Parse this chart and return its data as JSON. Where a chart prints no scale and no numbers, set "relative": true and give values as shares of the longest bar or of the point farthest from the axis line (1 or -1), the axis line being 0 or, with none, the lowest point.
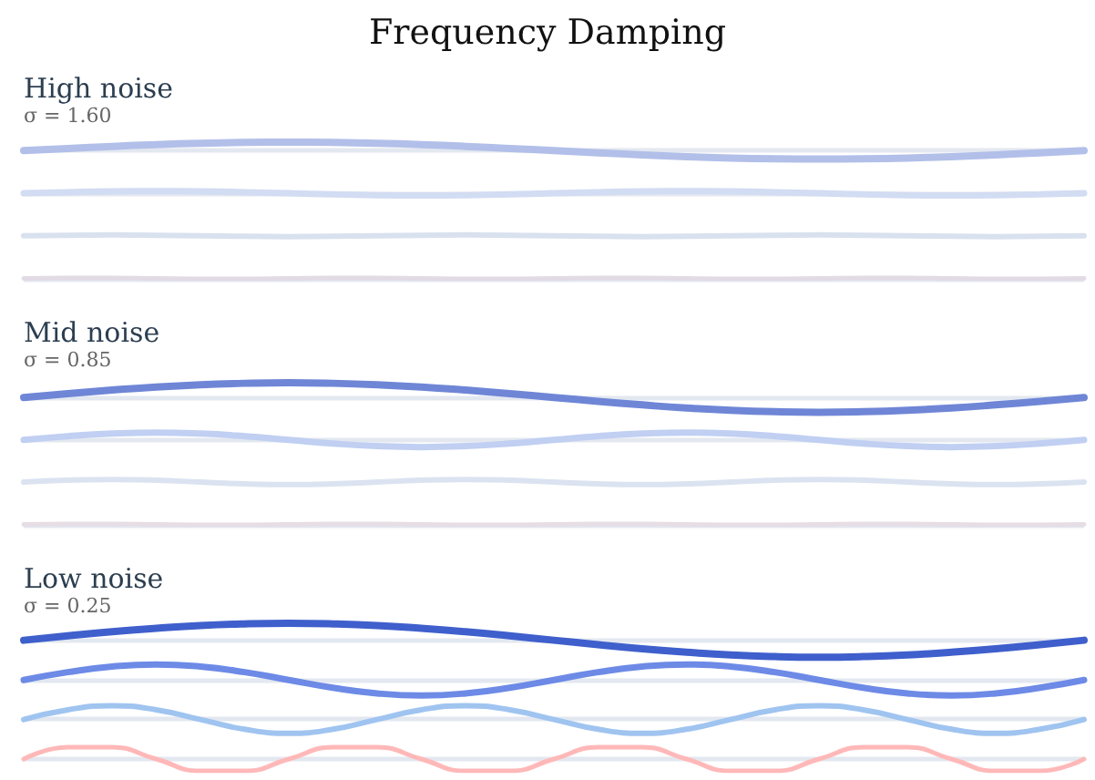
{
  "chart_data": [
    {
      "type": "line",
      "title": "High noise",
      "subtitle": "σ = 1.60",
      "annotations": [
        "Frequency Damping"
      ],
      "relative": true,
      "marker": "none",
      "categories": [
        null,
        null,
        null,
        null,
        null,
        null,
        null,
        null,
        null,
        null,
        null,
        null,
        null,
        null,
        null,
        null,
        null,
        null,
        null,
        null,
        null,
        null,
        null,
        null,
        null
      ],
      "series": [
        {
          "color": "#b2bfe9",
          "values": [
            0.938,
            0.954,
            0.969,
            0.982,
            0.992,
            0.998,
            1.0,
            0.998,
            0.992,
            0.982,
            0.969,
            0.954,
            0.938,
            0.922,
            0.907,
            0.894,
            0.884,
            0.878,
            0.876,
            0.878,
            0.884,
            0.894,
            0.907,
            0.922,
            0.938
          ]
        },
        {
          "color": "#d2dcf2",
          "values": [
            0.626,
            0.634,
            0.64,
            0.642,
            0.64,
            0.634,
            0.626,
            0.618,
            0.612,
            0.61,
            0.612,
            0.618,
            0.626,
            0.634,
            0.64,
            0.642,
            0.64,
            0.634,
            0.626,
            0.618,
            0.612,
            0.61,
            0.612,
            0.618,
            0.626
          ]
        },
        {
          "color": "#d9e1ee",
          "values": [
            0.315,
            0.319,
            0.321,
            0.319,
            0.315,
            0.311,
            0.309,
            0.311,
            0.315,
            0.319,
            0.321,
            0.319,
            0.315,
            0.311,
            0.309,
            0.311,
            0.315,
            0.319,
            0.321,
            0.319,
            0.315,
            0.311,
            0.309,
            0.311,
            0.315
          ]
        },
        {
          "color": "#e2dbe5",
          "values": [
            0.003,
            0.006,
            0.006,
            0.003,
            0,
            0,
            0.003,
            0.006,
            0.006,
            0.003,
            0,
            0,
            0.003,
            0.006,
            0.006,
            0.003,
            0,
            0,
            0.003,
            0.006,
            0.006,
            0.003,
            0,
            0,
            0.003
          ]
        }
      ],
      "ref_lines": [
        {
          "axis": "y",
          "value": 0.938,
          "color": "#e3e8f0"
        },
        {
          "axis": "y",
          "value": 0.626,
          "color": "#e3e8f0"
        },
        {
          "axis": "y",
          "value": 0.003,
          "color": "#e3e8f0"
        }
      ]
    },
    {
      "type": "line",
      "title": "Mid noise",
      "subtitle": "σ = 0.85",
      "relative": true,
      "marker": "none",
      "categories": [
        null,
        null,
        null,
        null,
        null,
        null,
        null,
        null,
        null,
        null,
        null,
        null,
        null,
        null,
        null,
        null,
        null,
        null,
        null,
        null,
        null,
        null,
        null,
        null,
        null
      ],
      "series": [
        {
          "color": "#6f86d6",
          "values": [
            0.896,
            0.923,
            0.948,
            0.97,
            0.986,
            0.996,
            1.0,
            0.996,
            0.986,
            0.97,
            0.948,
            0.923,
            0.896,
            0.869,
            0.844,
            0.822,
            0.806,
            0.796,
            0.792,
            0.796,
            0.806,
            0.822,
            0.844,
            0.869,
            0.896
          ]
        },
        {
          "color": "#c0cff2",
          "values": [
            0.598,
            0.624,
            0.642,
            0.649,
            0.642,
            0.624,
            0.598,
            0.572,
            0.554,
            0.547,
            0.554,
            0.572,
            0.598,
            0.624,
            0.642,
            0.649,
            0.642,
            0.624,
            0.598,
            0.572,
            0.554,
            0.547,
            0.554,
            0.572,
            0.598
          ]
        },
        {
          "color": "#dbe3f1",
          "values": [
            0.301,
            0.314,
            0.319,
            0.314,
            0.301,
            0.288,
            0.283,
            0.288,
            0.301,
            0.314,
            0.319,
            0.314,
            0.301,
            0.288,
            0.283,
            0.288,
            0.301,
            0.314,
            0.319,
            0.314,
            0.301,
            0.288,
            0.283,
            0.288,
            0.301
          ]
        },
        {
          "color": "#e6dde5",
          "values": [
            0.003,
            0.006,
            0.006,
            0.003,
            0,
            0,
            0.003,
            0.006,
            0.006,
            0.003,
            0,
            0,
            0.003,
            0.006,
            0.006,
            0.003,
            0,
            0,
            0.003,
            0.006,
            0.006,
            0.003,
            0,
            0,
            0.003
          ]
        }
      ],
      "ref_lines": [
        {
          "axis": "y",
          "value": 0.896,
          "color": "#e3e8f0"
        },
        {
          "axis": "y",
          "value": 0.598,
          "color": "#e3e8f0"
        },
        {
          "axis": "y",
          "value": 0.003,
          "color": "#e3e8f0"
        }
      ]
    },
    {
      "type": "line",
      "title": "Low noise",
      "subtitle": "σ = 0.25",
      "relative": true,
      "marker": "none",
      "categories": [
        null,
        null,
        null,
        null,
        null,
        null,
        null,
        null,
        null,
        null,
        null,
        null,
        null,
        null,
        null,
        null,
        null,
        null,
        null,
        null,
        null,
        null,
        null,
        null,
        null
      ],
      "series": [
        {
          "color": "#3f5fcc",
          "values": [
            0.885,
            0.915,
            0.943,
            0.966,
            0.985,
            0.996,
            1.0,
            0.996,
            0.985,
            0.966,
            0.943,
            0.915,
            0.885,
            0.855,
            0.827,
            0.804,
            0.785,
            0.774,
            0.77,
            0.774,
            0.785,
            0.804,
            0.827,
            0.855,
            0.885
          ]
        },
        {
          "color": "#6d8ae6",
          "values": [
            0.616,
            0.669,
            0.707,
            0.721,
            0.707,
            0.669,
            0.616,
            0.563,
            0.525,
            0.511,
            0.525,
            0.563,
            0.616,
            0.669,
            0.707,
            0.721,
            0.707,
            0.669,
            0.616,
            0.563,
            0.525,
            0.511,
            0.525,
            0.563,
            0.616
          ]
        },
        {
          "color": "#a0c4f0",
          "values": [
            0.348,
            0.414,
            0.442,
            0.414,
            0.348,
            0.282,
            0.254,
            0.282,
            0.348,
            0.414,
            0.442,
            0.414,
            0.348,
            0.282,
            0.254,
            0.282,
            0.348,
            0.414,
            0.442,
            0.414,
            0.348,
            0.282,
            0.254,
            0.282,
            0.348
          ]
        },
        {
          "color": "#ffb8b8",
          "values": [
            0.08,
            0.16,
            0.16,
            0.08,
            0,
            0,
            0.08,
            0.16,
            0.16,
            0.08,
            0,
            0,
            0.08,
            0.16,
            0.16,
            0.08,
            0,
            0,
            0.08,
            0.16,
            0.16,
            0.08,
            0,
            0,
            0.08
          ]
        }
      ],
      "ref_lines": [
        {
          "axis": "y",
          "value": 0.885,
          "color": "#e3e8f0"
        },
        {
          "axis": "y",
          "value": 0.616,
          "color": "#e3e8f0"
        },
        {
          "axis": "y",
          "value": 0.348,
          "color": "#e3e8f0"
        },
        {
          "axis": "y",
          "value": 0.08,
          "color": "#e3e8f0"
        }
      ]
    }
  ]
}
